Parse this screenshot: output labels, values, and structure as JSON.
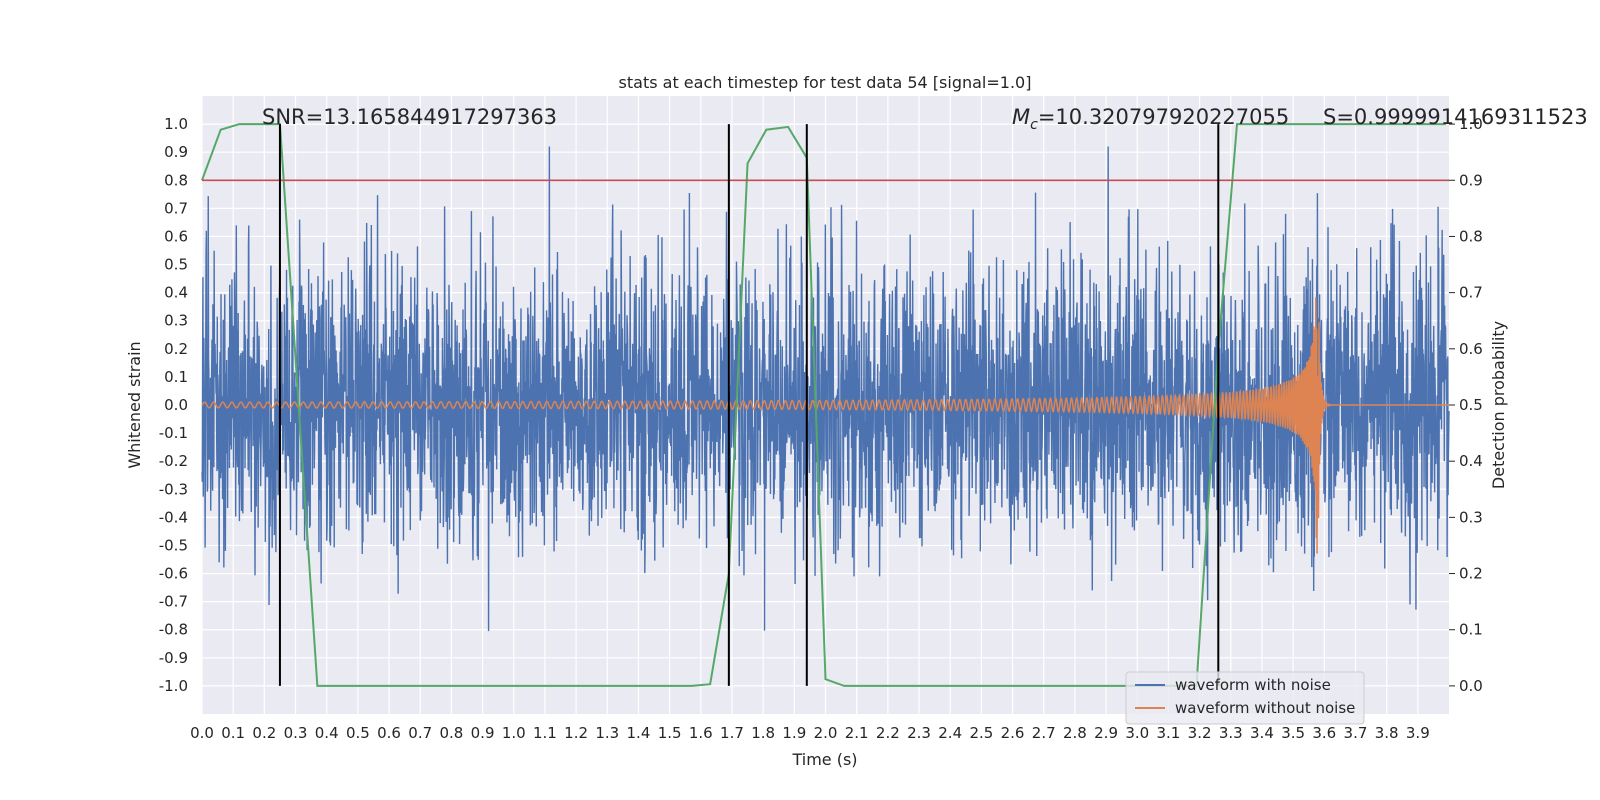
{
  "chart_data": {
    "type": "line",
    "title": "stats at each timestep for test data 54 [signal=1.0]",
    "xlabel": "Time (s)",
    "ylabel": "Whitened strain",
    "y2label": "Detection probability",
    "xlim": [
      0.0,
      4.0
    ],
    "ylim": [
      -1.1,
      1.1
    ],
    "y2lim": [
      -0.05,
      1.05
    ],
    "x_ticks": [
      "0.0",
      "0.1",
      "0.2",
      "0.3",
      "0.4",
      "0.5",
      "0.6",
      "0.7",
      "0.8",
      "0.9",
      "1.0",
      "1.1",
      "1.2",
      "1.3",
      "1.4",
      "1.5",
      "1.6",
      "1.7",
      "1.8",
      "1.9",
      "2.0",
      "2.1",
      "2.2",
      "2.3",
      "2.4",
      "2.5",
      "2.6",
      "2.7",
      "2.8",
      "2.9",
      "3.0",
      "3.1",
      "3.2",
      "3.3",
      "3.4",
      "3.5",
      "3.6",
      "3.7",
      "3.8",
      "3.9"
    ],
    "y_ticks": [
      "1.0",
      "0.9",
      "0.8",
      "0.7",
      "0.6",
      "0.5",
      "0.4",
      "0.3",
      "0.2",
      "0.1",
      "0.0",
      "-0.1",
      "-0.2",
      "-0.3",
      "-0.4",
      "-0.5",
      "-0.6",
      "-0.7",
      "-0.8",
      "-0.9",
      "-1.0"
    ],
    "y2_ticks": [
      "1.0",
      "0.9",
      "0.8",
      "0.7",
      "0.6",
      "0.5",
      "0.4",
      "0.3",
      "0.2",
      "0.1",
      "0.0"
    ],
    "grid": true,
    "legend_position": "lower-right",
    "threshold": {
      "axis": "y2",
      "value": 0.9,
      "color": "#c44e52"
    },
    "event_lines_x": [
      0.25,
      1.69,
      1.94,
      3.26
    ],
    "annotations": {
      "snr": "SNR=13.165844917297363",
      "mc_symbol": "M",
      "mc_sub": "c",
      "mc_value": "=10.320797920227055",
      "s": "S=0.9999914169311523"
    },
    "series": [
      {
        "name": "waveform with noise",
        "color": "#4c72b0",
        "axis": "y",
        "style": "noise",
        "amplitude_envelope": 0.5,
        "peak_range": [
          -0.98,
          0.92
        ]
      },
      {
        "name": "waveform without noise",
        "color": "#dd8452",
        "axis": "y",
        "style": "chirp",
        "merger_time": 3.58,
        "peak_amplitude": 0.54
      },
      {
        "name": "",
        "color": "#55a868",
        "axis": "y2",
        "x": [
          0.0,
          0.06,
          0.12,
          0.25,
          0.37,
          1.57,
          1.63,
          1.69,
          1.75,
          1.81,
          1.88,
          1.94,
          2.0,
          2.06,
          3.19,
          3.26,
          3.32,
          3.99
        ],
        "values": [
          0.9,
          0.99,
          1.0,
          1.0,
          0.0,
          0.0,
          0.003,
          0.2,
          0.93,
          0.99,
          0.995,
          0.94,
          0.012,
          0.0,
          0.0,
          0.6,
          1.0,
          1.0
        ]
      }
    ]
  }
}
